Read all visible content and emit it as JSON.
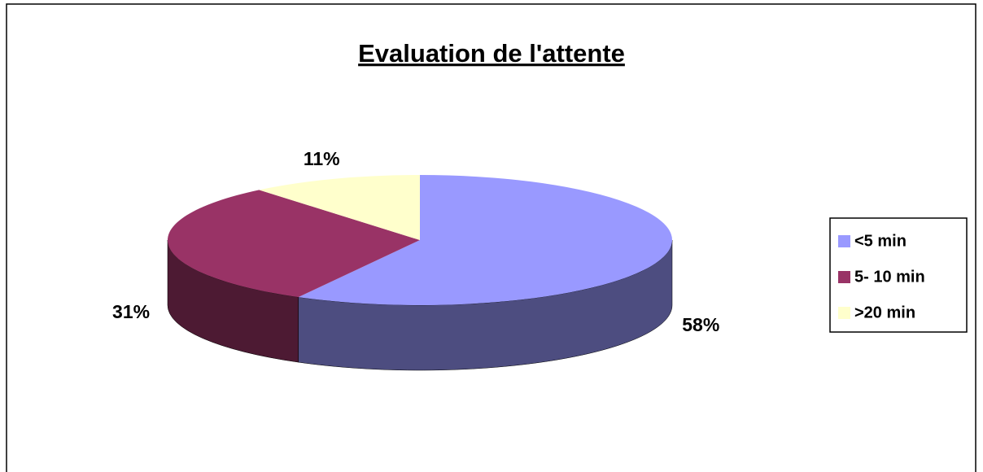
{
  "chart_data": {
    "type": "pie",
    "title": "Evaluation de l'attente",
    "categories": [
      "<5 min",
      "5- 10 min",
      ">20 min"
    ],
    "values": [
      58,
      31,
      11
    ],
    "value_labels": [
      "58%",
      "31%",
      "11%"
    ],
    "colors": [
      "#9999ff",
      "#993366",
      "#ffffcc"
    ],
    "legend": "right"
  }
}
